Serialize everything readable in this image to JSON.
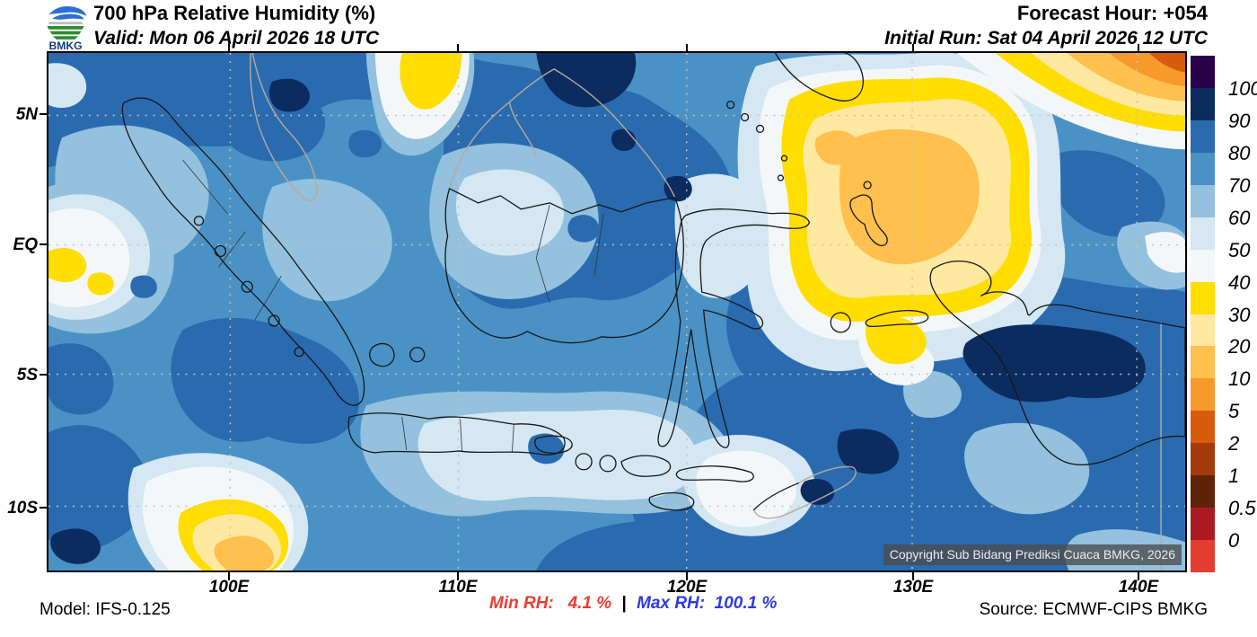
{
  "header": {
    "logo_text": "BMKG",
    "title": "700 hPa Relative Humidity (%)",
    "valid": "Valid: Mon 06 April 2026 18 UTC",
    "forecast_hour": "Forecast Hour: +054",
    "initial_run": "Initial Run: Sat 04 April 2026 12 UTC"
  },
  "map": {
    "lat_labels": [
      "5N",
      "EQ",
      "5S",
      "10S"
    ],
    "lon_labels": [
      "100E",
      "110E",
      "120E",
      "130E",
      "140E"
    ],
    "copyright": "Copyright Sub Bidang Prediksi Cuaca BMKG, 2026"
  },
  "legend": {
    "labels": [
      "100",
      "90",
      "80",
      "70",
      "60",
      "50",
      "40",
      "30",
      "20",
      "10",
      "5",
      "2",
      "1",
      "0.5",
      "0"
    ],
    "colors": [
      "#2B0149",
      "#0C2C60",
      "#2A6BB0",
      "#4A92C6",
      "#93C1DE",
      "#D4E7F3",
      "#F4F7F8",
      "#FFDE00",
      "#FFE9A0",
      "#FFC04E",
      "#F8992B",
      "#D85C0D",
      "#A33B0D",
      "#5F2407",
      "#AC1B24",
      "#E23D2E"
    ]
  },
  "footer": {
    "model": "Model: IFS-0.125",
    "min_rh_label": "Min RH:",
    "min_rh_value": "4.1 %",
    "separator": "|",
    "max_rh_label": "Max RH:",
    "max_rh_value": "100.1 %",
    "source": "Source: ECMWF-CIPS BMKG"
  },
  "colors": {
    "min_rh_text": "#EE3B33",
    "max_rh_text": "#2F3BDE",
    "map_base": "#4A92C6"
  }
}
